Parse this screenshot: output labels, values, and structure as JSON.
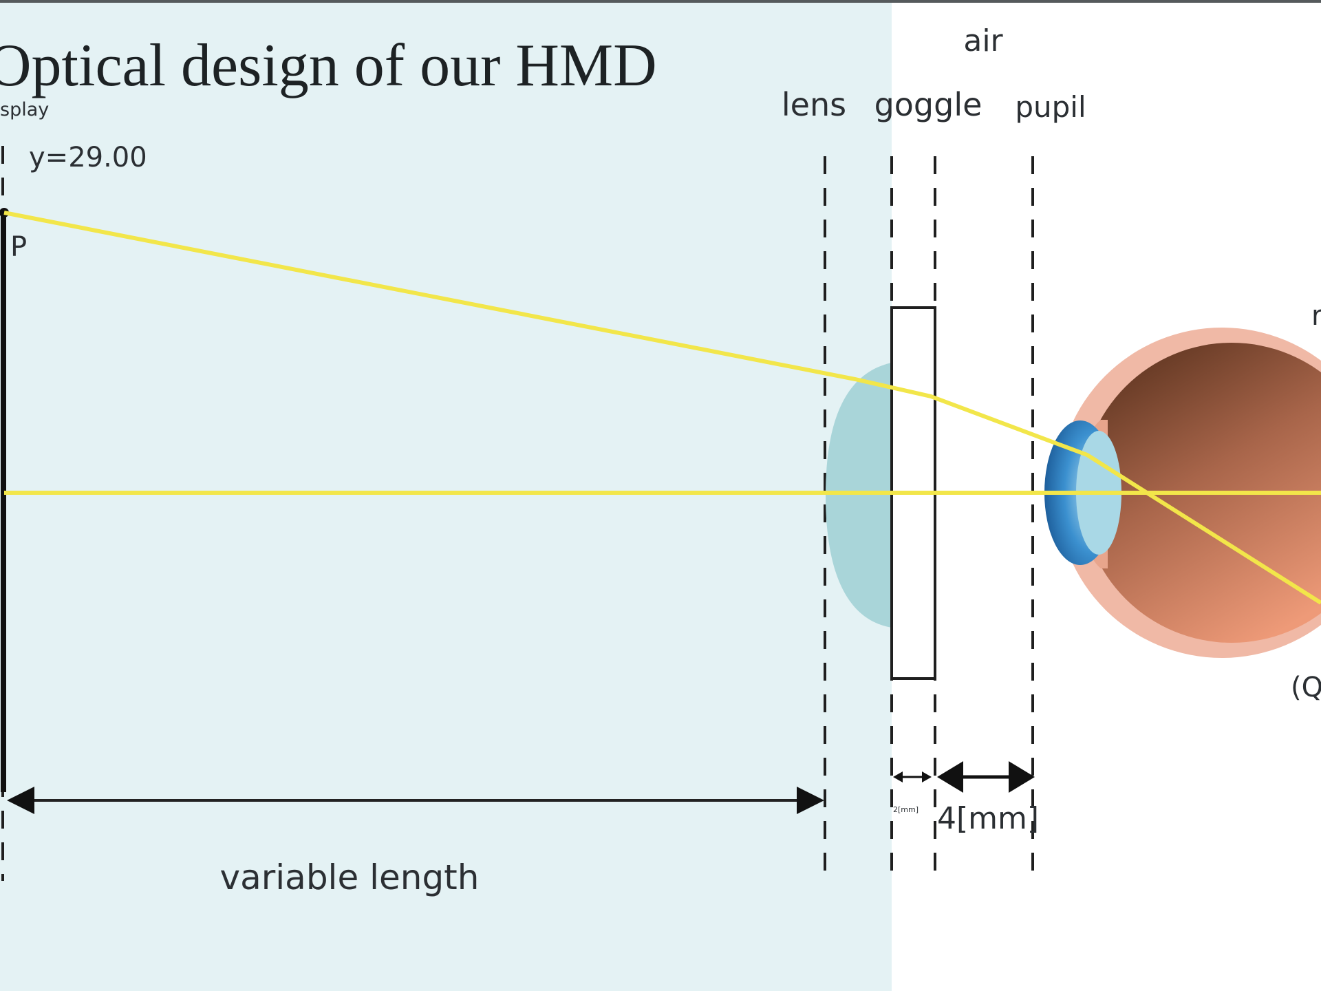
{
  "title": "Optical design of our HMD",
  "labels": {
    "display": "splay",
    "y_value": "y=29.00",
    "point_p": "P",
    "air": "air",
    "lens": "lens",
    "goggle": "goggle",
    "pupil": "pupil",
    "retina_partial": "r",
    "q_partial": "(Q",
    "variable_length": "variable length",
    "goggle_thickness": "2[mm]",
    "goggle_pupil_distance": "4[mm]"
  },
  "colors": {
    "background_region": "#e4f2f4",
    "ray": "#f2e64a",
    "lens": "#a9d5d9",
    "eye_outer": "#f0b9a6",
    "eye_inner": "#a0583a",
    "cornea": "#2f84c4"
  }
}
